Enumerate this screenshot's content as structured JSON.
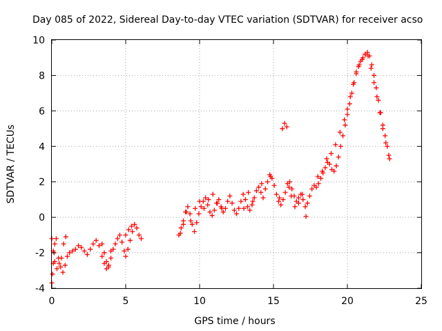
{
  "chart_data": {
    "type": "scatter",
    "title": "Day 085 of 2022, Sidereal Day-to-day VTEC variation (SDTVAR) for receiver acso",
    "xlabel": "GPS time / hours",
    "ylabel": "SDTVAR / TECUs",
    "xlim": [
      0,
      25
    ],
    "ylim": [
      -4,
      10
    ],
    "xticks": [
      "0",
      "5",
      "10",
      "15",
      "20",
      "25"
    ],
    "yticks": [
      "-4",
      "-2",
      "0",
      "2",
      "4",
      "6",
      "8",
      "10"
    ],
    "grid": true,
    "marker": "plus",
    "color": "#ff0000",
    "series": [
      {
        "name": "SDTVAR",
        "x": [
          0.0,
          0.05,
          0.1,
          0.15,
          0.2,
          0.3,
          0.45,
          0.6,
          0.75,
          0.9,
          1.05,
          1.2,
          1.4,
          1.6,
          1.8,
          2.0,
          2.2,
          2.4,
          2.6,
          2.8,
          3.0,
          3.2,
          3.4,
          3.55,
          3.7,
          3.85,
          4.0,
          4.15,
          4.3,
          4.45,
          4.6,
          4.75,
          4.9,
          5.0,
          5.15,
          5.3,
          5.45,
          5.6,
          5.75,
          5.9,
          6.05,
          8.6,
          8.75,
          8.9,
          9.05,
          9.2,
          9.35,
          9.5,
          9.65,
          9.8,
          9.95,
          10.1,
          10.25,
          10.4,
          10.55,
          10.7,
          10.85,
          11.0,
          11.15,
          11.3,
          11.45,
          11.6,
          11.75,
          11.9,
          12.05,
          12.2,
          12.35,
          12.5,
          12.65,
          12.8,
          12.95,
          13.1,
          13.25,
          13.4,
          13.55,
          13.7,
          13.85,
          14.0,
          14.15,
          14.3,
          14.45,
          14.6,
          14.75,
          14.9,
          15.05,
          15.2,
          15.35,
          15.5,
          15.65,
          15.8,
          15.95,
          16.1,
          16.25,
          16.4,
          16.55,
          16.7,
          16.85,
          17.0,
          17.15,
          17.3,
          17.45,
          17.6,
          17.75,
          17.9,
          18.05,
          18.2,
          18.35,
          18.5,
          18.65,
          18.8,
          18.95,
          19.1,
          19.25,
          19.4,
          19.55,
          19.7,
          19.85,
          20.0,
          20.15,
          20.3,
          20.45,
          20.6,
          20.75,
          20.9,
          21.05,
          21.2,
          21.35,
          21.5,
          21.65,
          21.8,
          21.95,
          22.1,
          22.25,
          22.4,
          22.55,
          22.7,
          22.85,
          0.0,
          0.1,
          0.2,
          0.35,
          0.5,
          0.65,
          0.8,
          0.95,
          3.4,
          3.55,
          3.7,
          3.85,
          4.0,
          5.0,
          5.2,
          5.4,
          8.7,
          8.9,
          9.1,
          9.4,
          9.7,
          10.0,
          10.3,
          10.6,
          10.9,
          11.2,
          11.5,
          13.0,
          13.3,
          13.6,
          14.2,
          14.8,
          15.4,
          15.6,
          15.75,
          15.9,
          16.05,
          16.2,
          16.45,
          16.7,
          16.95,
          17.2,
          18.0,
          18.3,
          18.6,
          18.9,
          19.2,
          19.5,
          19.8,
          20.0,
          20.2,
          20.4,
          20.6,
          20.8,
          21.0,
          21.2,
          21.4,
          21.6,
          21.8,
          22.0,
          22.2,
          22.4,
          22.6,
          22.8
        ],
        "y": [
          -3.7,
          -3.2,
          -2.6,
          -2.0,
          -1.5,
          -1.2,
          -2.3,
          -2.8,
          -3.1,
          -2.7,
          -2.2,
          -2.0,
          -1.9,
          -1.8,
          -1.6,
          -1.7,
          -1.9,
          -2.1,
          -1.8,
          -1.5,
          -1.3,
          -1.6,
          -2.2,
          -2.6,
          -2.9,
          -2.7,
          -2.3,
          -1.8,
          -1.5,
          -1.2,
          -1.0,
          -1.4,
          -1.9,
          -2.2,
          -1.8,
          -1.3,
          -0.8,
          -0.4,
          -0.6,
          -1.0,
          -1.2,
          -1.0,
          -0.6,
          -0.2,
          0.3,
          0.6,
          0.2,
          -0.4,
          -0.8,
          -0.3,
          0.2,
          0.6,
          0.9,
          1.1,
          0.7,
          0.3,
          0.1,
          0.4,
          0.8,
          1.0,
          0.6,
          0.3,
          0.5,
          0.9,
          1.2,
          0.8,
          0.4,
          0.2,
          0.5,
          0.9,
          1.3,
          1.0,
          0.6,
          0.4,
          0.7,
          1.1,
          1.5,
          1.7,
          1.4,
          1.1,
          1.6,
          2.0,
          2.4,
          2.2,
          1.8,
          1.3,
          0.9,
          0.7,
          1.0,
          1.4,
          1.9,
          2.0,
          1.6,
          1.2,
          0.9,
          1.1,
          1.3,
          1.0,
          0.6,
          0.8,
          1.2,
          1.6,
          1.8,
          1.7,
          1.9,
          2.2,
          2.5,
          2.8,
          3.1,
          3.0,
          2.7,
          2.6,
          2.9,
          3.4,
          4.0,
          4.6,
          5.2,
          5.8,
          6.4,
          7.0,
          7.6,
          8.1,
          8.5,
          8.8,
          9.0,
          9.2,
          9.3,
          9.1,
          8.6,
          8.0,
          7.3,
          6.6,
          5.9,
          5.2,
          4.6,
          4.0,
          3.3,
          -1.2,
          -1.9,
          -2.5,
          -2.9,
          -2.6,
          -2.3,
          -1.5,
          -1.1,
          -1.5,
          -2.0,
          -2.5,
          -2.8,
          -1.9,
          -1.0,
          -0.7,
          -0.5,
          -0.9,
          -0.4,
          0.3,
          -0.2,
          0.5,
          0.9,
          0.5,
          1.0,
          1.3,
          0.8,
          0.5,
          0.5,
          1.4,
          0.9,
          1.9,
          2.3,
          1.1,
          5.0,
          5.3,
          5.1,
          1.7,
          1.2,
          0.6,
          0.8,
          1.3,
          0.05,
          2.3,
          2.6,
          3.3,
          3.6,
          4.1,
          4.8,
          5.5,
          6.1,
          6.8,
          7.5,
          8.2,
          8.6,
          8.9,
          9.2,
          9.1,
          8.4,
          7.6,
          6.8,
          5.9,
          5.0,
          4.2,
          3.5
        ]
      }
    ]
  }
}
